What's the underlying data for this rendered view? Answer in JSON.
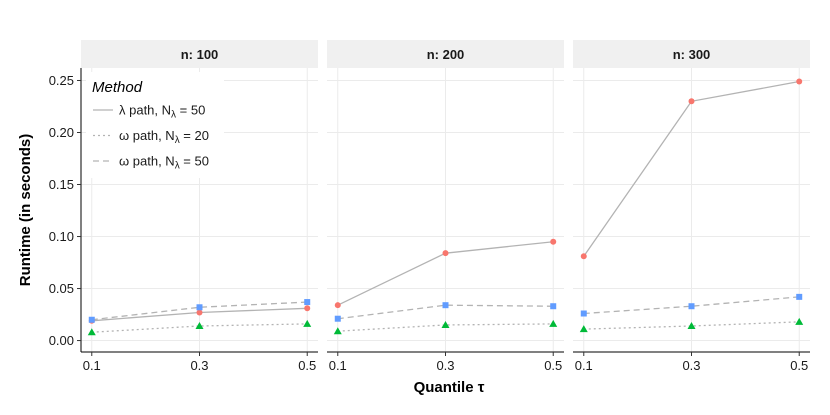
{
  "chart_data": {
    "type": "line",
    "facet_title_prefix": "n: ",
    "facets": [
      {
        "label": "100",
        "x": [
          0.1,
          0.3,
          0.5
        ],
        "series": [
          {
            "name": "λ path, N_λ = 50",
            "values": [
              0.019,
              0.027,
              0.031
            ]
          },
          {
            "name": "ω path, N_λ = 20",
            "values": [
              0.008,
              0.014,
              0.016
            ]
          },
          {
            "name": "ω path, N_λ = 50",
            "values": [
              0.02,
              0.032,
              0.037
            ]
          }
        ]
      },
      {
        "label": "200",
        "x": [
          0.1,
          0.3,
          0.5
        ],
        "series": [
          {
            "name": "λ path, N_λ = 50",
            "values": [
              0.034,
              0.084,
              0.095
            ]
          },
          {
            "name": "ω path, N_λ = 20",
            "values": [
              0.009,
              0.015,
              0.016
            ]
          },
          {
            "name": "ω path, N_λ = 50",
            "values": [
              0.021,
              0.034,
              0.033
            ]
          }
        ]
      },
      {
        "label": "300",
        "x": [
          0.1,
          0.3,
          0.5
        ],
        "series": [
          {
            "name": "λ path, N_λ = 50",
            "values": [
              0.081,
              0.23,
              0.249
            ]
          },
          {
            "name": "ω path, N_λ = 20",
            "values": [
              0.011,
              0.014,
              0.018
            ]
          },
          {
            "name": "ω path, N_λ = 50",
            "values": [
              0.026,
              0.033,
              0.042
            ]
          }
        ]
      }
    ],
    "xlabel": "Quantile τ",
    "ylabel": "Runtime (in seconds)",
    "xticks": [
      "0.1",
      "0.3",
      "0.5"
    ],
    "yticks": [
      "0.00",
      "0.05",
      "0.10",
      "0.15",
      "0.20",
      "0.25"
    ],
    "ylim": [
      -0.011,
      0.262
    ],
    "xlim": [
      0.08,
      0.52
    ],
    "grid": true,
    "legend": {
      "title": "Method",
      "placement": "top-left",
      "entries": [
        {
          "greek": "λ",
          "text": " path, N",
          "sub": "λ",
          "tail": " = 50",
          "dash": "solid"
        },
        {
          "greek": "ω",
          "text": " path, N",
          "sub": "λ",
          "tail": " = 20",
          "dash": "dotted"
        },
        {
          "greek": "ω",
          "text": " path, N",
          "sub": "λ",
          "tail": " = 50",
          "dash": "dashed"
        }
      ]
    },
    "colors": {
      "line": "#b3b3b3",
      "lambda_marker": "#f8766d",
      "omega20_marker": "#00ba38",
      "omega50_marker": "#619cff",
      "strip_bg": "#f0f0f0",
      "grid": "#ebebeb"
    }
  }
}
